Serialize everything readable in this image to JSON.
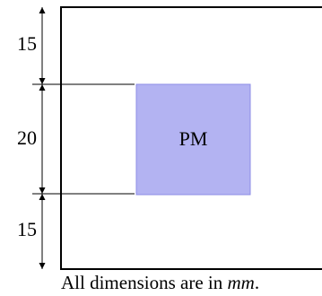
{
  "diagram": {
    "dimensions": [
      {
        "label": "15",
        "value_mm": 15
      },
      {
        "label": "20",
        "value_mm": 20
      },
      {
        "label": "15",
        "value_mm": 15
      }
    ],
    "magnet": {
      "label": "PM",
      "fill": "#b3b3f2",
      "stroke": "#8c8ce6"
    },
    "outline_color": "#000000"
  },
  "caption": {
    "prefix": "All dimensions are in ",
    "unit": "mm",
    "suffix": "."
  }
}
